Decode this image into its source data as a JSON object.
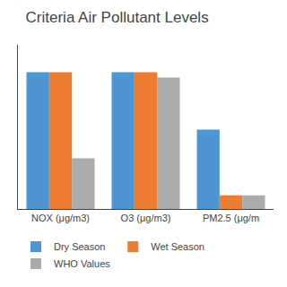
{
  "chart_data": {
    "type": "bar",
    "title": "Criteria Air Pollutant Levels",
    "categories": [
      "NOX (μg/m3)",
      "O3 (μg/m3)",
      "PM2.5 (μg/m"
    ],
    "series": [
      {
        "name": "Dry Season",
        "color": "#4E96D1",
        "values": [
          100,
          100,
          58
        ]
      },
      {
        "name": "Wet Season",
        "color": "#ED7D31",
        "values": [
          100,
          100,
          10
        ]
      },
      {
        "name": "WHO Values",
        "color": "#ABABAB",
        "values": [
          37,
          96,
          10
        ]
      }
    ],
    "ylim": [
      0,
      120
    ],
    "grid": false,
    "legend": "bottom",
    "tick_labels": "x"
  }
}
